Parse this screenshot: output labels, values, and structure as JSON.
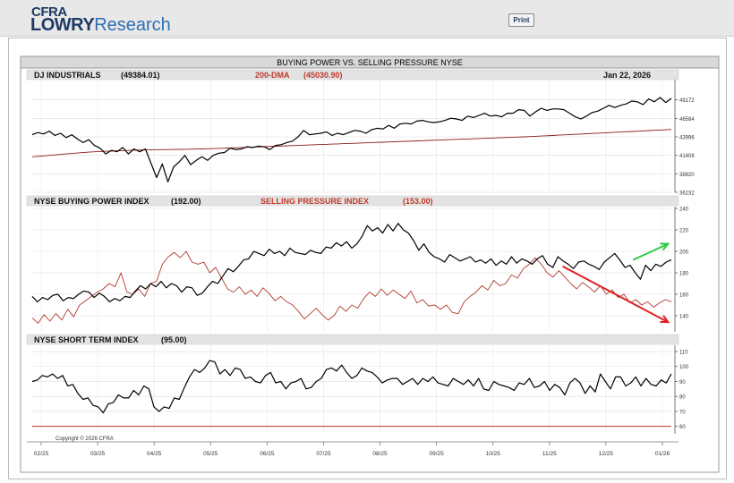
{
  "header": {
    "logo_top": "CFRA",
    "logo_lowry": "LOWRY",
    "logo_research": "Research",
    "print_label": "Print"
  },
  "chart_data": {
    "type": "line",
    "title": "BUYING POWER VS. SELLING PRESSURE NYSE",
    "date_label": "Jan 22, 2026",
    "copyright": "Copyright © 2026 CFRA",
    "x_tick_labels": [
      "02/25",
      "03/25",
      "04/25",
      "05/25",
      "06/25",
      "07/25",
      "08/25",
      "09/25",
      "10/25",
      "11/25",
      "12/25",
      "01/26"
    ],
    "grid": true,
    "panels": [
      {
        "name": "djia",
        "label": "DJ INDUSTRIALS",
        "label_value": "(49384.01)",
        "label2": "200-DMA",
        "label2_value": "(45030.90)",
        "ylim": [
          36232,
          51760
        ],
        "yticks": [
          36232,
          38820,
          41408,
          43996,
          46584,
          49172
        ],
        "series": [
          {
            "name": "DJ INDUSTRIALS",
            "color": "#000000",
            "values": [
              44300,
              44600,
              44400,
              44800,
              44200,
              44500,
              43900,
              44300,
              43700,
              43200,
              43600,
              42800,
              42400,
              41600,
              42100,
              41900,
              42500,
              41600,
              42300,
              41900,
              42300,
              40300,
              38300,
              40200,
              37700,
              39800,
              40500,
              41400,
              40100,
              40700,
              41200,
              40700,
              41400,
              41700,
              41800,
              42400,
              42200,
              42300,
              42600,
              42500,
              42700,
              42600,
              42200,
              42800,
              42900,
              43200,
              43400,
              44000,
              44900,
              44300,
              44400,
              44500,
              44700,
              44200,
              44500,
              44300,
              44600,
              44900,
              44800,
              44500,
              45000,
              45200,
              45100,
              45600,
              45200,
              45800,
              45900,
              45800,
              46200,
              46300,
              46100,
              46000,
              46100,
              46300,
              46600,
              46500,
              46300,
              46900,
              46700,
              47000,
              47300,
              46900,
              47000,
              46800,
              47300,
              47300,
              47800,
              47700,
              46900,
              47500,
              48000,
              47700,
              47900,
              47900,
              47800,
              47300,
              46800,
              46500,
              46900,
              47400,
              47600,
              48000,
              48400,
              48100,
              48400,
              48600,
              49000,
              48900,
              48500,
              49300,
              48900,
              49500,
              48800,
              49384
            ]
          },
          {
            "name": "200-DMA",
            "color": "#8b1a1a",
            "values": [
              41200,
              41260,
              41330,
              41400,
              41470,
              41540,
              41610,
              41670,
              41730,
              41790,
              41850,
              41900,
              41940,
              41980,
              42010,
              42040,
              42070,
              42100,
              42130,
              42150,
              42170,
              42190,
              42200,
              42210,
              42220,
              42230,
              42240,
              42250,
              42270,
              42290,
              42310,
              42330,
              42350,
              42380,
              42410,
              42440,
              42470,
              42500,
              42530,
              42560,
              42590,
              42620,
              42650,
              42680,
              42710,
              42740,
              42770,
              42800,
              42830,
              42860,
              42890,
              42920,
              42950,
              42980,
              43010,
              43040,
              43070,
              43100,
              43130,
              43160,
              43190,
              43220,
              43250,
              43280,
              43310,
              43340,
              43370,
              43400,
              43430,
              43460,
              43490,
              43520,
              43550,
              43580,
              43610,
              43640,
              43670,
              43700,
              43730,
              43760,
              43790,
              43820,
              43850,
              43880,
              43910,
              43940,
              43970,
              44000,
              44030,
              44070,
              44110,
              44150,
              44190,
              44230,
              44270,
              44310,
              44350,
              44390,
              44430,
              44470,
              44510,
              44550,
              44590,
              44630,
              44670,
              44710,
              44750,
              44790,
              44830,
              44870,
              44910,
              44950,
              44990,
              45030.9
            ]
          }
        ]
      },
      {
        "name": "buying-selling",
        "label": "NYSE BUYING POWER INDEX",
        "label_value": "(192.00)",
        "label2": "SELLING PRESSURE INDEX",
        "label2_value": "(153.00)",
        "ylim": [
          125,
          240
        ],
        "yticks": [
          140,
          160,
          180,
          200,
          220,
          240
        ],
        "series": [
          {
            "name": "NYSE BUYING POWER INDEX",
            "color": "#000000",
            "values": [
              158,
              153,
              157,
              155,
              159,
              160,
              154,
              157,
              156,
              160,
              163,
              162,
              157,
              161,
              158,
              153,
              156,
              154,
              158,
              157,
              163,
              168,
              165,
              170,
              167,
              172,
              166,
              170,
              168,
              162,
              167,
              166,
              159,
              161,
              167,
              172,
              170,
              177,
              184,
              181,
              186,
              192,
              193,
              200,
              198,
              196,
              202,
              198,
              200,
              196,
              203,
              199,
              198,
              197,
              201,
              199,
              198,
              204,
              203,
              208,
              205,
              209,
              203,
              207,
              214,
              224,
              219,
              222,
              217,
              225,
              219,
              226,
              220,
              217,
              210,
              201,
              207,
              199,
              195,
              193,
              190,
              197,
              194,
              191,
              193,
              195,
              190,
              192,
              189,
              193,
              187,
              191,
              188,
              195,
              189,
              193,
              191,
              188,
              193,
              196,
              188,
              185,
              195,
              191,
              188,
              184,
              190,
              191,
              188,
              186,
              183,
              190,
              194,
              198,
              192,
              185,
              187,
              180,
              174,
              187,
              182,
              188,
              186,
              190,
              192
            ]
          },
          {
            "name": "SELLING PRESSURE INDEX",
            "color": "#b03a2e",
            "values": [
              138,
              133,
              141,
              135,
              142,
              136,
              146,
              139,
              150,
              154,
              158,
              162,
              165,
              170,
              167,
              180,
              162,
              160,
              165,
              158,
              170,
              172,
              188,
              195,
              199,
              194,
              200,
              190,
              188,
              190,
              180,
              185,
              175,
              165,
              162,
              167,
              160,
              164,
              158,
              166,
              161,
              154,
              158,
              153,
              150,
              144,
              137,
              142,
              147,
              141,
              136,
              140,
              149,
              144,
              150,
              147,
              156,
              162,
              158,
              165,
              159,
              164,
              160,
              156,
              163,
              152,
              155,
              149,
              150,
              146,
              150,
              143,
              142,
              153,
              158,
              162,
              168,
              164,
              173,
              168,
              170,
              178,
              175,
              184,
              188,
              194,
              188,
              180,
              176,
              182,
              176,
              170,
              165,
              171,
              167,
              162,
              168,
              160,
              164,
              157,
              160,
              152,
              155,
              150,
              153,
              148,
              152,
              155,
              153
            ]
          }
        ]
      },
      {
        "name": "short-term",
        "label": "NYSE SHORT TERM INDEX",
        "label_value": "(95.00)",
        "ylim": [
          55,
          113
        ],
        "yticks": [
          60,
          70,
          80,
          90,
          100,
          110
        ],
        "series": [
          {
            "name": "NYSE SHORT TERM INDEX",
            "color": "#000000",
            "values": [
              90,
              91,
              94,
              93,
              95,
              92,
              94,
              87,
              88,
              82,
              78,
              79,
              74,
              73,
              69,
              75,
              76,
              81,
              79,
              79,
              84,
              81,
              87,
              85,
              73,
              70,
              73,
              72,
              79,
              78,
              86,
              93,
              98,
              96,
              99,
              104,
              103,
              95,
              98,
              94,
              99,
              98,
              92,
              93,
              90,
              89,
              94,
              96,
              89,
              90,
              85,
              89,
              90,
              92,
              85,
              86,
              90,
              92,
              98,
              99,
              97,
              101,
              96,
              92,
              94,
              99,
              97,
              96,
              93,
              89,
              91,
              92,
              92,
              88,
              90,
              92,
              88,
              92,
              90,
              93,
              89,
              88,
              87,
              92,
              90,
              88,
              91,
              87,
              92,
              85,
              84,
              90,
              88,
              87,
              86,
              84,
              89,
              88,
              92,
              86,
              87,
              90,
              84,
              88,
              86,
              81,
              89,
              92,
              89,
              82,
              87,
              83,
              95,
              90,
              85,
              93,
              93,
              87,
              89,
              93,
              87,
              92,
              88,
              87,
              91,
              89,
              95
            ]
          }
        ]
      }
    ],
    "annotations": [
      {
        "name": "up-arrow",
        "color": "#2ecc40",
        "from": [
          0.94,
          192
        ],
        "to": [
          0.995,
          207
        ]
      },
      {
        "name": "down-arrow",
        "color": "#e02020",
        "from": [
          0.83,
          186
        ],
        "to": [
          0.995,
          134
        ]
      }
    ]
  }
}
